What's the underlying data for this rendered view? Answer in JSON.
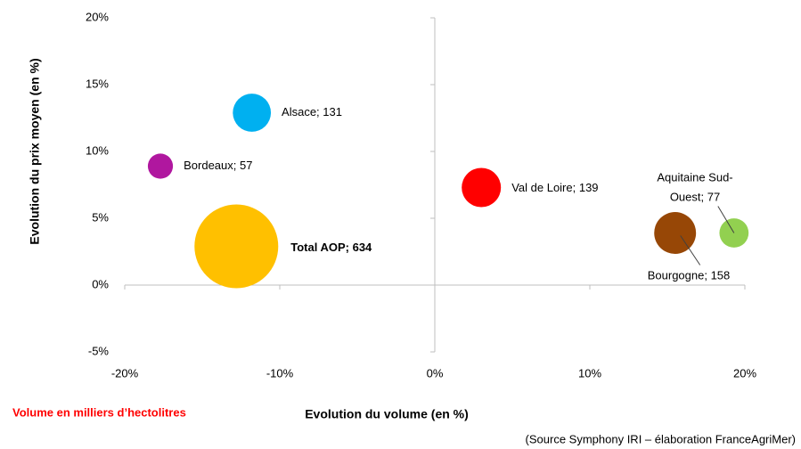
{
  "chart_data": {
    "type": "bubble",
    "x_label": "Evolution du volume (en %)",
    "y_label": "Evolution du prix moyen (en %)",
    "note": "Volume en milliers d’hectolitres",
    "source": "(Source Symphony IRI – élaboration FranceAgriMer)",
    "xlim": [
      -20,
      20
    ],
    "xticks": [
      {
        "value": -20,
        "label": "-20%"
      },
      {
        "value": -10,
        "label": "-10%"
      },
      {
        "value": 0,
        "label": "0%"
      },
      {
        "value": 10,
        "label": "10%"
      },
      {
        "value": 20,
        "label": "20%"
      }
    ],
    "ylim": [
      -5,
      20
    ],
    "yticks": [
      {
        "value": -5,
        "label": "-5%"
      },
      {
        "value": 0,
        "label": "0%"
      },
      {
        "value": 5,
        "label": "5%"
      },
      {
        "value": 10,
        "label": "10%"
      },
      {
        "value": 15,
        "label": "15%"
      },
      {
        "value": 20,
        "label": "20%"
      }
    ],
    "series": [
      {
        "name": "Alsace",
        "color": "#00b0f0",
        "x": -11.8,
        "y": 12.9,
        "size": 131,
        "label": [
          "Alsace;  131"
        ]
      },
      {
        "name": "Bordeaux",
        "color": "#b0179f",
        "x": -17.7,
        "y": 8.9,
        "size": 57,
        "label": [
          "Bordeaux;  57"
        ]
      },
      {
        "name": "Total AOP",
        "color": "#ffc000",
        "x": -12.8,
        "y": 2.9,
        "size": 634,
        "label": [
          "Total AOP;  634"
        ],
        "bold": true
      },
      {
        "name": "Val de Loire",
        "color": "#ff0000",
        "x": 3.0,
        "y": 7.3,
        "size": 139,
        "label": [
          "Val de Loire;  139"
        ]
      },
      {
        "name": "Bourgogne",
        "color": "#974706",
        "x": 15.5,
        "y": 3.9,
        "size": 158,
        "label": [
          "Bourgogne;  158"
        ]
      },
      {
        "name": "Aquitaine Sud-Ouest",
        "color": "#92d050",
        "x": 19.3,
        "y": 3.9,
        "size": 77,
        "label": [
          "Aquitaine Sud-",
          "Ouest;  77"
        ]
      }
    ]
  }
}
